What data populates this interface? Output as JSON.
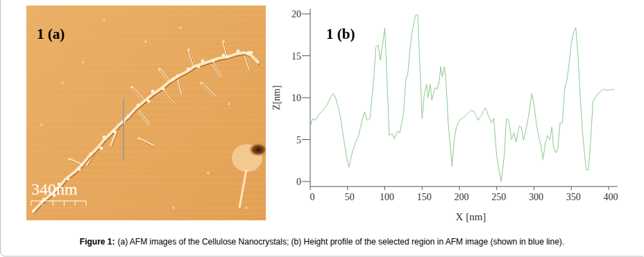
{
  "figure": {
    "panel_a": {
      "label": "1 (a)",
      "scale_bar": "340nm"
    },
    "panel_b": {
      "label": "1 (b)"
    },
    "caption": {
      "lead": "Figure 1:",
      "text": "(a) AFM images of the Cellulose Nanocrystals; (b) Height profile of the selected region in AFM image (shown in blue line)."
    }
  },
  "chart_data": {
    "type": "line",
    "x_label": "X [nm]",
    "y_label": "Z[nm]",
    "x": [
      0,
      3,
      7,
      12,
      18,
      23,
      28,
      31,
      34,
      40,
      45,
      50,
      52,
      55,
      60,
      65,
      70,
      73,
      76,
      80,
      85,
      88,
      91,
      94,
      98,
      100,
      103,
      106,
      110,
      113,
      117,
      120,
      125,
      128,
      131,
      134,
      137,
      141,
      144,
      147,
      150,
      153,
      156,
      158,
      161,
      163,
      167,
      170,
      173,
      175,
      177,
      180,
      182,
      185,
      188,
      190,
      193,
      196,
      200,
      205,
      210,
      215,
      220,
      225,
      230,
      235,
      240,
      243,
      246,
      250,
      253,
      256,
      260,
      263,
      266,
      270,
      273,
      276,
      280,
      283,
      286,
      290,
      294,
      297,
      300,
      303,
      306,
      310,
      312,
      315,
      318,
      321,
      324,
      326,
      329,
      332,
      335,
      338,
      341,
      344,
      347,
      350,
      353,
      356,
      359,
      362,
      365,
      368,
      370,
      373,
      376,
      379,
      382,
      386,
      390,
      393,
      396,
      400,
      404,
      408
    ],
    "series": [
      {
        "color": "#8cc88c",
        "values": [
          6.5,
          7.5,
          7.3,
          8,
          8.6,
          9.2,
          10.2,
          10.5,
          10,
          8,
          5,
          2.3,
          1.7,
          3,
          4.5,
          5.5,
          7.5,
          8.3,
          7.3,
          7.5,
          12,
          16,
          16.3,
          14.5,
          17,
          18.3,
          12,
          5.5,
          5.7,
          5.1,
          6,
          5.8,
          8,
          12,
          13,
          16,
          18,
          19.8,
          19.9,
          14,
          7.5,
          10.5,
          11.6,
          10,
          11.6,
          9.7,
          11.2,
          11,
          12,
          13.7,
          12.5,
          13.7,
          12,
          7,
          4,
          1.8,
          5,
          6.5,
          7.3,
          7.6,
          8,
          8.5,
          8.3,
          7.3,
          8,
          8.8,
          7.6,
          7,
          7.5,
          3,
          1.5,
          0,
          3,
          7.5,
          7.3,
          5,
          5.8,
          4.7,
          6.6,
          6.5,
          4.9,
          6.5,
          8.5,
          10.5,
          9.2,
          7,
          5.5,
          4,
          2.6,
          4.5,
          5.5,
          5,
          6.5,
          4.2,
          3.4,
          4,
          7,
          7,
          11,
          12,
          14,
          16.5,
          17.8,
          18.4,
          15,
          10,
          6,
          3,
          1.4,
          1.4,
          5,
          9.5,
          10,
          10.5,
          10.8,
          11,
          10.9,
          10.9,
          11,
          10.9
        ]
      }
    ],
    "xlim": [
      0,
      412
    ],
    "ylim": [
      -0.6,
      20.6
    ],
    "xticks": [
      0,
      50,
      100,
      150,
      200,
      250,
      300,
      350,
      400
    ],
    "yticks": [
      0,
      5,
      10,
      15,
      20
    ]
  }
}
